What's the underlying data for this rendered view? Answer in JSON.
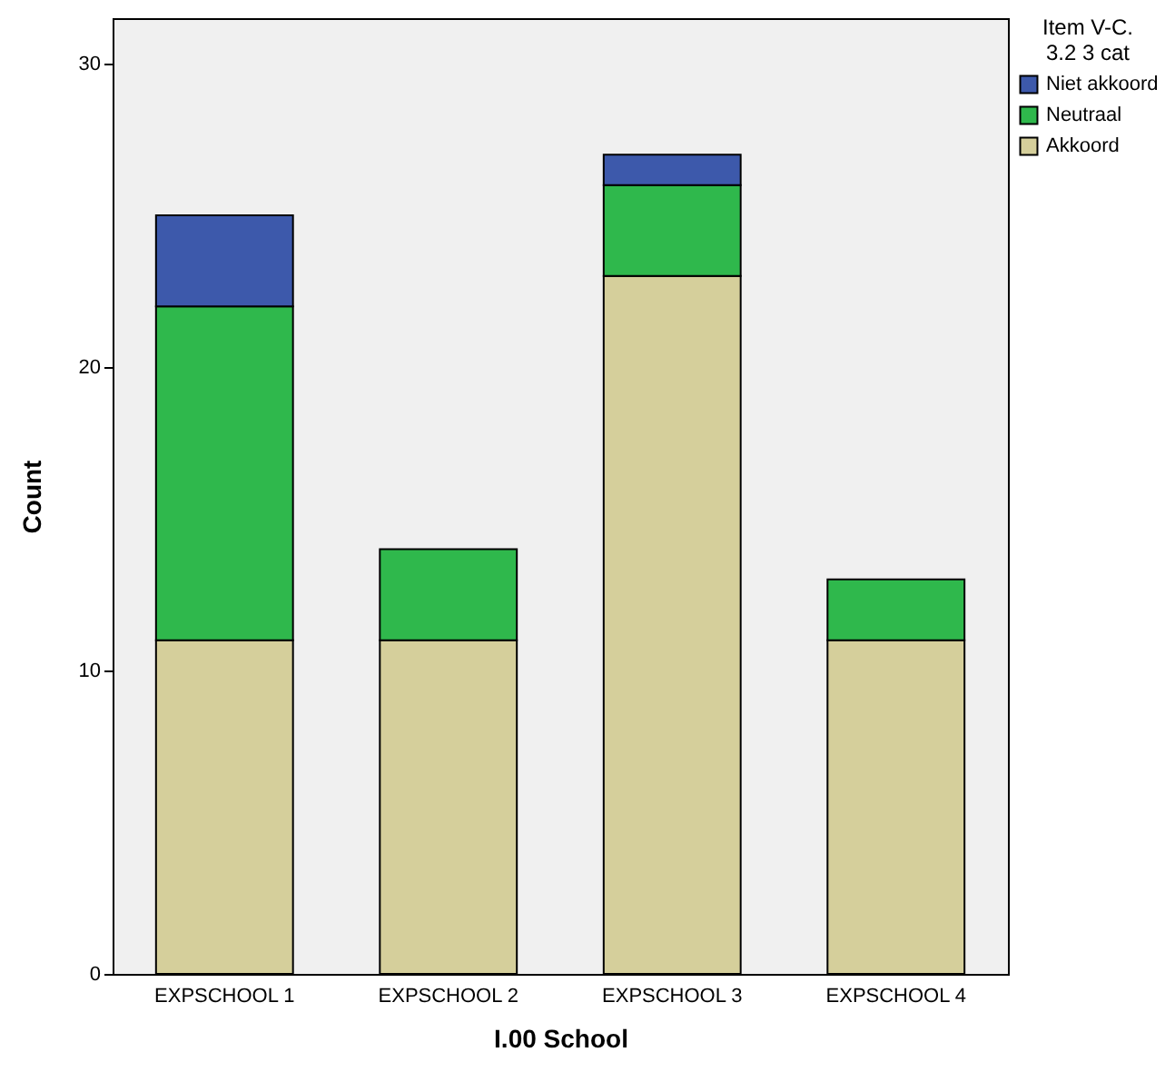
{
  "chart_data": {
    "type": "bar",
    "xlabel": "I.00  School",
    "ylabel": "Count",
    "legend_title": "Item V-C.\n3.2 3 cat",
    "categories": [
      "EXPSCHOOL 1",
      "EXPSCHOOL 2",
      "EXPSCHOOL 3",
      "EXPSCHOOL 4"
    ],
    "stacked": true,
    "series": [
      {
        "name": "Akkoord",
        "color": "#d5cf9b",
        "values": [
          11,
          11,
          23,
          11
        ]
      },
      {
        "name": "Neutraal",
        "color": "#2fb84c",
        "values": [
          11,
          3,
          3,
          2
        ]
      },
      {
        "name": "Niet akkoord",
        "color": "#3d59ab",
        "values": [
          3,
          null,
          1,
          null
        ]
      }
    ],
    "ylim": [
      0,
      31.5
    ],
    "yticks": [
      0,
      10,
      20,
      30
    ],
    "grid": false,
    "legend": "top right"
  }
}
